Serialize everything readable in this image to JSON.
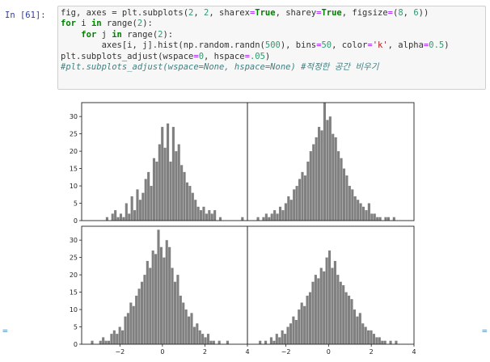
{
  "cell": {
    "prompt": "In [61]:",
    "code_lines": [
      [
        {
          "t": "fig, axes = plt.subplots(",
          "c": ""
        },
        {
          "t": "2",
          "c": "num"
        },
        {
          "t": ", ",
          "c": ""
        },
        {
          "t": "2",
          "c": "num"
        },
        {
          "t": ", sharex",
          "c": ""
        },
        {
          "t": "=",
          "c": "op"
        },
        {
          "t": "True",
          "c": "kw"
        },
        {
          "t": ", sharey",
          "c": ""
        },
        {
          "t": "=",
          "c": "op"
        },
        {
          "t": "True",
          "c": "kw"
        },
        {
          "t": ", figsize",
          "c": ""
        },
        {
          "t": "=",
          "c": "op"
        },
        {
          "t": "(",
          "c": ""
        },
        {
          "t": "8",
          "c": "num"
        },
        {
          "t": ", ",
          "c": ""
        },
        {
          "t": "6",
          "c": "num"
        },
        {
          "t": "))",
          "c": ""
        }
      ],
      [
        {
          "t": "for",
          "c": "kw"
        },
        {
          "t": " i ",
          "c": ""
        },
        {
          "t": "in",
          "c": "kw"
        },
        {
          "t": " range(",
          "c": ""
        },
        {
          "t": "2",
          "c": "num"
        },
        {
          "t": "):",
          "c": ""
        }
      ],
      [
        {
          "t": "    ",
          "c": ""
        },
        {
          "t": "for",
          "c": "kw"
        },
        {
          "t": " j ",
          "c": ""
        },
        {
          "t": "in",
          "c": "kw"
        },
        {
          "t": " range(",
          "c": ""
        },
        {
          "t": "2",
          "c": "num"
        },
        {
          "t": "):",
          "c": ""
        }
      ],
      [
        {
          "t": "        axes[i, j].hist(np.random.randn(",
          "c": ""
        },
        {
          "t": "500",
          "c": "num"
        },
        {
          "t": "), bins",
          "c": ""
        },
        {
          "t": "=",
          "c": "op"
        },
        {
          "t": "50",
          "c": "num"
        },
        {
          "t": ", color",
          "c": ""
        },
        {
          "t": "=",
          "c": "op"
        },
        {
          "t": "'k'",
          "c": "str"
        },
        {
          "t": ", alpha",
          "c": ""
        },
        {
          "t": "=",
          "c": "op"
        },
        {
          "t": "0.5",
          "c": "num"
        },
        {
          "t": ")",
          "c": ""
        }
      ],
      [
        {
          "t": "plt.subplots_adjust(wspace",
          "c": ""
        },
        {
          "t": "=",
          "c": "op"
        },
        {
          "t": "0",
          "c": "num"
        },
        {
          "t": ", hspace",
          "c": ""
        },
        {
          "t": "=",
          "c": "op"
        },
        {
          "t": ".05",
          "c": "num"
        },
        {
          "t": ")",
          "c": ""
        }
      ],
      [
        {
          "t": "#plt.subplots_adjust(wspace=None, hspace=None) #적정한 공간 비우기",
          "c": "comment"
        }
      ]
    ]
  },
  "edge_markers": {
    "left": "=",
    "right": "="
  },
  "chart_data": [
    {
      "type": "bar",
      "panel": "top-left",
      "xlim": [
        -3.8,
        4.0
      ],
      "ylim": [
        0,
        34
      ],
      "yticks": [
        0,
        5,
        10,
        15,
        20,
        25,
        30
      ],
      "xticks": [],
      "bin_width": 0.13,
      "x_centers": [
        -2.6,
        -2.47,
        -2.34,
        -2.21,
        -2.08,
        -1.95,
        -1.82,
        -1.69,
        -1.56,
        -1.43,
        -1.3,
        -1.17,
        -1.04,
        -0.91,
        -0.78,
        -0.65,
        -0.52,
        -0.39,
        -0.26,
        -0.13,
        0.0,
        0.13,
        0.26,
        0.39,
        0.52,
        0.65,
        0.78,
        0.91,
        1.04,
        1.17,
        1.3,
        1.43,
        1.56,
        1.69,
        1.82,
        1.95,
        2.08,
        2.21,
        2.34,
        2.47,
        2.6,
        2.73,
        2.86,
        2.99,
        3.12,
        3.25,
        3.38,
        3.51,
        3.64,
        3.77
      ],
      "values": [
        1,
        0,
        2,
        3,
        1,
        2,
        1,
        5,
        2,
        7,
        3,
        9,
        6,
        8,
        12,
        14,
        10,
        18,
        17,
        22,
        27,
        21,
        28,
        17,
        27,
        20,
        22,
        16,
        14,
        11,
        10,
        8,
        6,
        4,
        3,
        4,
        2,
        3,
        2,
        3,
        0,
        1,
        0,
        0,
        0,
        0,
        0,
        0,
        0,
        1
      ]
    },
    {
      "type": "bar",
      "panel": "top-right",
      "xlim": [
        -3.8,
        4.0
      ],
      "ylim": [
        0,
        34
      ],
      "yticks": [],
      "xticks": [],
      "bin_width": 0.13,
      "x_centers": [
        -3.3,
        -3.17,
        -3.04,
        -2.91,
        -2.78,
        -2.65,
        -2.52,
        -2.39,
        -2.26,
        -2.13,
        -2.0,
        -1.87,
        -1.74,
        -1.61,
        -1.48,
        -1.35,
        -1.22,
        -1.09,
        -0.96,
        -0.83,
        -0.7,
        -0.57,
        -0.44,
        -0.31,
        -0.18,
        -0.05,
        0.08,
        0.21,
        0.34,
        0.47,
        0.6,
        0.73,
        0.86,
        0.99,
        1.12,
        1.25,
        1.38,
        1.51,
        1.64,
        1.77,
        1.9,
        2.03,
        2.16,
        2.29,
        2.42,
        2.55,
        2.68,
        2.81,
        2.94,
        3.07
      ],
      "values": [
        1,
        0,
        1,
        2,
        1,
        2,
        3,
        2,
        4,
        3,
        5,
        7,
        6,
        9,
        10,
        12,
        14,
        13,
        17,
        20,
        22,
        24,
        27,
        26,
        34,
        29,
        30,
        25,
        24,
        20,
        18,
        15,
        13,
        10,
        9,
        7,
        6,
        5,
        4,
        3,
        5,
        2,
        2,
        1,
        1,
        0,
        1,
        1,
        0,
        1
      ]
    },
    {
      "type": "bar",
      "panel": "bottom-left",
      "xlim": [
        -3.8,
        4.0
      ],
      "ylim": [
        0,
        34
      ],
      "yticks": [
        0,
        5,
        10,
        15,
        20,
        25,
        30
      ],
      "xticks": [
        -2,
        0,
        2,
        4
      ],
      "bin_width": 0.13,
      "x_centers": [
        -3.3,
        -3.17,
        -3.04,
        -2.91,
        -2.78,
        -2.65,
        -2.52,
        -2.39,
        -2.26,
        -2.13,
        -2.0,
        -1.87,
        -1.74,
        -1.61,
        -1.48,
        -1.35,
        -1.22,
        -1.09,
        -0.96,
        -0.83,
        -0.7,
        -0.57,
        -0.44,
        -0.31,
        -0.18,
        -0.05,
        0.08,
        0.21,
        0.34,
        0.47,
        0.6,
        0.73,
        0.86,
        0.99,
        1.12,
        1.25,
        1.38,
        1.51,
        1.64,
        1.77,
        1.9,
        2.03,
        2.16,
        2.29,
        2.42,
        2.55,
        2.68,
        2.81,
        2.94,
        3.07
      ],
      "values": [
        1,
        0,
        0,
        1,
        2,
        1,
        1,
        3,
        4,
        3,
        5,
        4,
        8,
        9,
        12,
        11,
        14,
        16,
        18,
        20,
        24,
        22,
        27,
        26,
        33,
        28,
        25,
        30,
        28,
        22,
        18,
        20,
        14,
        12,
        10,
        8,
        9,
        5,
        6,
        4,
        3,
        2,
        3,
        1,
        1,
        0,
        1,
        0,
        0,
        1
      ]
    },
    {
      "type": "bar",
      "panel": "bottom-right",
      "xlim": [
        -3.8,
        4.0
      ],
      "ylim": [
        0,
        34
      ],
      "yticks": [],
      "xticks": [
        -2,
        0,
        2,
        4
      ],
      "bin_width": 0.13,
      "x_centers": [
        -3.2,
        -3.07,
        -2.94,
        -2.81,
        -2.68,
        -2.55,
        -2.42,
        -2.29,
        -2.16,
        -2.03,
        -1.9,
        -1.77,
        -1.64,
        -1.51,
        -1.38,
        -1.25,
        -1.12,
        -0.99,
        -0.86,
        -0.73,
        -0.6,
        -0.47,
        -0.34,
        -0.21,
        -0.08,
        0.05,
        0.18,
        0.31,
        0.44,
        0.57,
        0.7,
        0.83,
        0.96,
        1.09,
        1.22,
        1.35,
        1.48,
        1.61,
        1.74,
        1.87,
        2.0,
        2.13,
        2.26,
        2.39,
        2.52,
        2.65,
        2.78,
        2.91,
        3.04,
        3.17
      ],
      "values": [
        1,
        0,
        1,
        0,
        2,
        1,
        3,
        2,
        4,
        3,
        5,
        6,
        8,
        7,
        10,
        12,
        11,
        14,
        15,
        18,
        20,
        19,
        22,
        21,
        25,
        27,
        22,
        24,
        20,
        18,
        17,
        15,
        14,
        13,
        10,
        8,
        9,
        6,
        5,
        4,
        4,
        3,
        2,
        2,
        1,
        1,
        0,
        1,
        0,
        1
      ]
    }
  ]
}
